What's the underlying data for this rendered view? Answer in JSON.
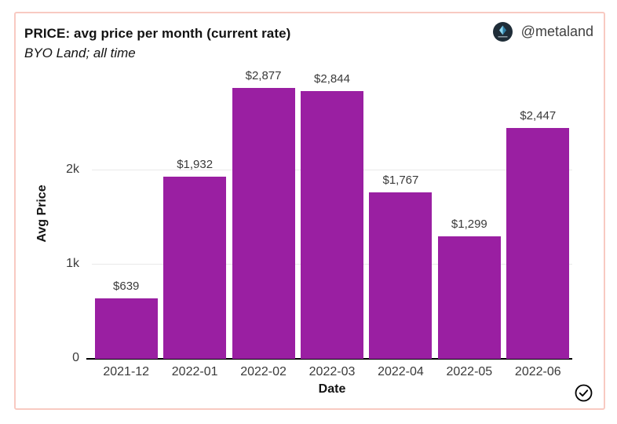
{
  "header": {
    "title": "PRICE: avg price per month (current rate)",
    "subtitle": "BYO Land; all time",
    "account_handle": "@metaland"
  },
  "icons": {
    "logo": "metaland-logo-icon",
    "verified": "check-circle-icon"
  },
  "colors": {
    "bar": "#9a1fa2",
    "card_border": "#f8cac2",
    "gridline": "#e9e9e9",
    "axis": "#000000",
    "logo_bg": "#1f2d38",
    "logo_diamond_light": "#8ed6ee",
    "logo_diamond_dark": "#2f7fa6"
  },
  "chart_data": {
    "type": "bar",
    "title": "PRICE: avg price per month (current rate)",
    "subtitle": "BYO Land; all time",
    "categories": [
      "2021-12",
      "2022-01",
      "2022-02",
      "2022-03",
      "2022-04",
      "2022-05",
      "2022-06"
    ],
    "values": [
      639,
      1932,
      2877,
      2844,
      1767,
      1299,
      2447
    ],
    "labels": [
      "$639",
      "$1,932",
      "$2,877",
      "$2,844",
      "$1,767",
      "$1,299",
      "$2,447"
    ],
    "xlabel": "Date",
    "ylabel": "Avg Price",
    "yticks": [
      {
        "value": 0,
        "label": "0"
      },
      {
        "value": 1000,
        "label": "1k"
      },
      {
        "value": 2000,
        "label": "2k"
      }
    ],
    "ylim": [
      0,
      3083
    ],
    "grid": "y",
    "legend": "none",
    "bar_color": "#9a1fa2"
  }
}
